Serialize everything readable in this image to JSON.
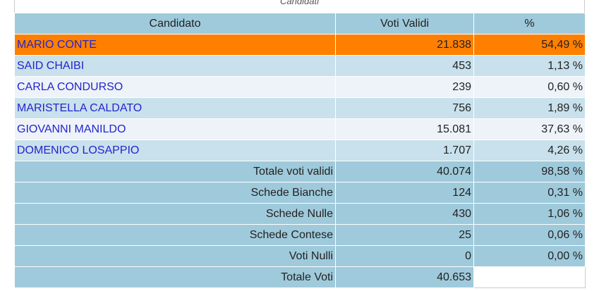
{
  "caption": "Candidati",
  "table": {
    "header": [
      "Candidato",
      "Voti Validi",
      "%"
    ],
    "candidates": [
      [
        "MARIO CONTE",
        "21.838",
        "54,49 %"
      ],
      [
        "SAID CHAIBI",
        "453",
        "1,13 %"
      ],
      [
        "CARLA CONDURSO",
        "239",
        "0,60 %"
      ],
      [
        "MARISTELLA CALDATO",
        "756",
        "1,89 %"
      ],
      [
        "GIOVANNI MANILDO",
        "15.081",
        "37,63 %"
      ],
      [
        "DOMENICO LOSAPPIO",
        "1.707",
        "4,26 %"
      ]
    ],
    "totals": [
      [
        "Totale voti validi",
        "40.074",
        "98,58 %"
      ],
      [
        "Schede Bianche",
        "124",
        "0,31 %"
      ],
      [
        "Schede Nulle",
        "430",
        "1,06 %"
      ],
      [
        "Schede Contese",
        "25",
        "0,06 %"
      ],
      [
        "Voti Nulli",
        "0",
        "0,00 %"
      ],
      [
        "Totale Voti",
        "40.653"
      ]
    ]
  }
}
